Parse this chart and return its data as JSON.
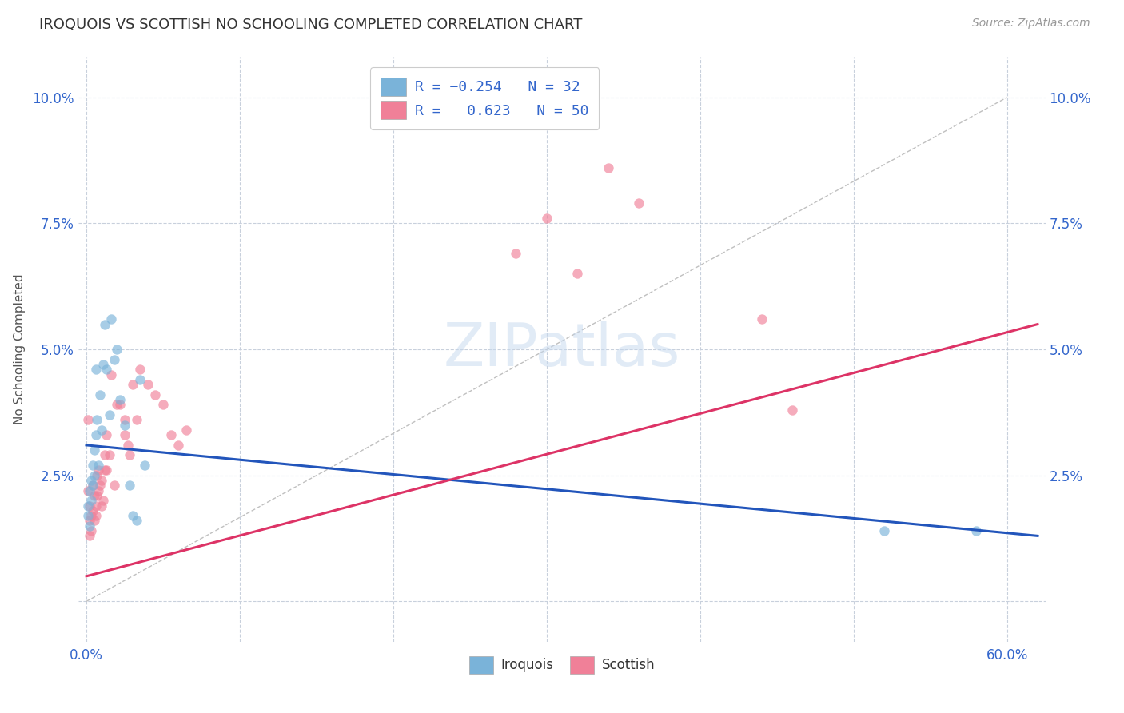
{
  "title": "IROQUOIS VS SCOTTISH NO SCHOOLING COMPLETED CORRELATION CHART",
  "source": "Source: ZipAtlas.com",
  "ylabel": "No Schooling Completed",
  "x_ticks": [
    0.0,
    0.1,
    0.2,
    0.3,
    0.4,
    0.5,
    0.6
  ],
  "x_tick_labels": [
    "0.0%",
    "",
    "",
    "",
    "",
    "",
    "60.0%"
  ],
  "y_ticks": [
    0.0,
    0.025,
    0.05,
    0.075,
    0.1
  ],
  "y_tick_labels": [
    "",
    "2.5%",
    "5.0%",
    "7.5%",
    "10.0%"
  ],
  "xlim": [
    -0.005,
    0.625
  ],
  "ylim": [
    -0.008,
    0.108
  ],
  "watermark": "ZIPatlas",
  "iroquois_color": "#7ab3d9",
  "scottish_color": "#f08098",
  "iroquois_line_color": "#2255bb",
  "scottish_line_color": "#dd3366",
  "iroquois_line_x0": 0.0,
  "iroquois_line_y0": 0.031,
  "iroquois_line_x1": 0.62,
  "iroquois_line_y1": 0.013,
  "scottish_line_x0": 0.0,
  "scottish_line_y0": 0.005,
  "scottish_line_x1": 0.62,
  "scottish_line_y1": 0.055,
  "ref_line_x0": 0.0,
  "ref_line_y0": 0.0,
  "ref_line_x1": 0.6,
  "ref_line_y1": 0.1,
  "iroquois_points": [
    [
      0.001,
      0.019
    ],
    [
      0.001,
      0.017
    ],
    [
      0.002,
      0.022
    ],
    [
      0.002,
      0.015
    ],
    [
      0.003,
      0.024
    ],
    [
      0.003,
      0.02
    ],
    [
      0.004,
      0.023
    ],
    [
      0.004,
      0.027
    ],
    [
      0.005,
      0.025
    ],
    [
      0.005,
      0.03
    ],
    [
      0.006,
      0.033
    ],
    [
      0.006,
      0.046
    ],
    [
      0.007,
      0.036
    ],
    [
      0.008,
      0.027
    ],
    [
      0.009,
      0.041
    ],
    [
      0.01,
      0.034
    ],
    [
      0.011,
      0.047
    ],
    [
      0.012,
      0.055
    ],
    [
      0.013,
      0.046
    ],
    [
      0.015,
      0.037
    ],
    [
      0.016,
      0.056
    ],
    [
      0.018,
      0.048
    ],
    [
      0.02,
      0.05
    ],
    [
      0.022,
      0.04
    ],
    [
      0.025,
      0.035
    ],
    [
      0.028,
      0.023
    ],
    [
      0.03,
      0.017
    ],
    [
      0.033,
      0.016
    ],
    [
      0.035,
      0.044
    ],
    [
      0.038,
      0.027
    ],
    [
      0.52,
      0.014
    ],
    [
      0.58,
      0.014
    ]
  ],
  "scottish_points": [
    [
      0.001,
      0.036
    ],
    [
      0.001,
      0.022
    ],
    [
      0.002,
      0.019
    ],
    [
      0.002,
      0.016
    ],
    [
      0.002,
      0.013
    ],
    [
      0.003,
      0.017
    ],
    [
      0.003,
      0.014
    ],
    [
      0.004,
      0.018
    ],
    [
      0.004,
      0.023
    ],
    [
      0.005,
      0.021
    ],
    [
      0.005,
      0.016
    ],
    [
      0.006,
      0.017
    ],
    [
      0.006,
      0.019
    ],
    [
      0.007,
      0.021
    ],
    [
      0.007,
      0.025
    ],
    [
      0.008,
      0.022
    ],
    [
      0.008,
      0.026
    ],
    [
      0.009,
      0.023
    ],
    [
      0.01,
      0.024
    ],
    [
      0.01,
      0.019
    ],
    [
      0.011,
      0.02
    ],
    [
      0.012,
      0.026
    ],
    [
      0.012,
      0.029
    ],
    [
      0.013,
      0.026
    ],
    [
      0.013,
      0.033
    ],
    [
      0.015,
      0.029
    ],
    [
      0.016,
      0.045
    ],
    [
      0.018,
      0.023
    ],
    [
      0.02,
      0.039
    ],
    [
      0.022,
      0.039
    ],
    [
      0.025,
      0.036
    ],
    [
      0.025,
      0.033
    ],
    [
      0.027,
      0.031
    ],
    [
      0.028,
      0.029
    ],
    [
      0.03,
      0.043
    ],
    [
      0.033,
      0.036
    ],
    [
      0.035,
      0.046
    ],
    [
      0.04,
      0.043
    ],
    [
      0.045,
      0.041
    ],
    [
      0.05,
      0.039
    ],
    [
      0.055,
      0.033
    ],
    [
      0.06,
      0.031
    ],
    [
      0.065,
      0.034
    ],
    [
      0.28,
      0.069
    ],
    [
      0.3,
      0.076
    ],
    [
      0.32,
      0.065
    ],
    [
      0.34,
      0.086
    ],
    [
      0.36,
      0.079
    ],
    [
      0.44,
      0.056
    ],
    [
      0.46,
      0.038
    ]
  ],
  "iroquois_marker_size": 80,
  "scottish_marker_size": 80
}
